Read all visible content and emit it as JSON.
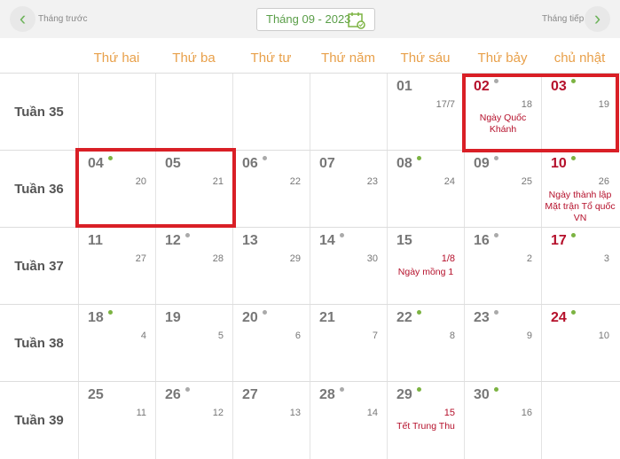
{
  "nav": {
    "prev_label": "Tháng trước",
    "next_label": "Tháng tiếp",
    "month": "Tháng 09 - 2023",
    "prev_icon": "chevron-left-icon",
    "next_icon": "chevron-right-icon",
    "calendar_icon": "calendar-check-icon"
  },
  "weekdays": [
    "Thứ hai",
    "Thứ ba",
    "Thứ tư",
    "Thứ năm",
    "Thứ sáu",
    "Thứ bảy",
    "chủ nhật"
  ],
  "colors": {
    "weekday": "#e8a04a",
    "holiday": "#b5102b",
    "dot_green": "#7cb342",
    "dot_gray": "#aaaaaa",
    "highlight": "#d91f26",
    "accent": "#5a9e48"
  },
  "weeks": [
    {
      "label": "Tuần 35",
      "days": [
        null,
        null,
        null,
        null,
        {
          "day": "01",
          "lunar": "17/7"
        },
        {
          "day": "02",
          "lunar": "18",
          "red": true,
          "dot": "gray",
          "event": "Ngày Quốc Khánh"
        },
        {
          "day": "03",
          "lunar": "19",
          "red": true,
          "dot": "green"
        }
      ]
    },
    {
      "label": "Tuần 36",
      "days": [
        {
          "day": "04",
          "lunar": "20",
          "dot": "green"
        },
        {
          "day": "05",
          "lunar": "21"
        },
        {
          "day": "06",
          "lunar": "22",
          "dot": "gray"
        },
        {
          "day": "07",
          "lunar": "23"
        },
        {
          "day": "08",
          "lunar": "24",
          "dot": "green"
        },
        {
          "day": "09",
          "lunar": "25",
          "dot": "gray"
        },
        {
          "day": "10",
          "lunar": "26",
          "red": true,
          "dot": "green",
          "event": "Ngày thành lập Mặt trận Tổ quốc VN"
        }
      ]
    },
    {
      "label": "Tuần 37",
      "days": [
        {
          "day": "11",
          "lunar": "27"
        },
        {
          "day": "12",
          "lunar": "28",
          "dot": "gray"
        },
        {
          "day": "13",
          "lunar": "29"
        },
        {
          "day": "14",
          "lunar": "30",
          "dot": "gray"
        },
        {
          "day": "15",
          "lunar": "1/8",
          "lunar_red": true,
          "event": "Ngày mồng 1"
        },
        {
          "day": "16",
          "lunar": "2",
          "dot": "gray"
        },
        {
          "day": "17",
          "lunar": "3",
          "red": true,
          "dot": "green"
        }
      ]
    },
    {
      "label": "Tuần 38",
      "days": [
        {
          "day": "18",
          "lunar": "4",
          "dot": "green"
        },
        {
          "day": "19",
          "lunar": "5"
        },
        {
          "day": "20",
          "lunar": "6",
          "dot": "gray"
        },
        {
          "day": "21",
          "lunar": "7"
        },
        {
          "day": "22",
          "lunar": "8",
          "dot": "green"
        },
        {
          "day": "23",
          "lunar": "9",
          "dot": "gray"
        },
        {
          "day": "24",
          "lunar": "10",
          "red": true,
          "dot": "green"
        }
      ]
    },
    {
      "label": "Tuần 39",
      "days": [
        {
          "day": "25",
          "lunar": "11"
        },
        {
          "day": "26",
          "lunar": "12",
          "dot": "gray"
        },
        {
          "day": "27",
          "lunar": "13"
        },
        {
          "day": "28",
          "lunar": "14",
          "dot": "gray"
        },
        {
          "day": "29",
          "lunar": "15",
          "lunar_red": true,
          "dot": "green",
          "event": "Tết Trung Thu"
        },
        {
          "day": "30",
          "lunar": "16",
          "dot": "green"
        },
        null
      ]
    }
  ]
}
